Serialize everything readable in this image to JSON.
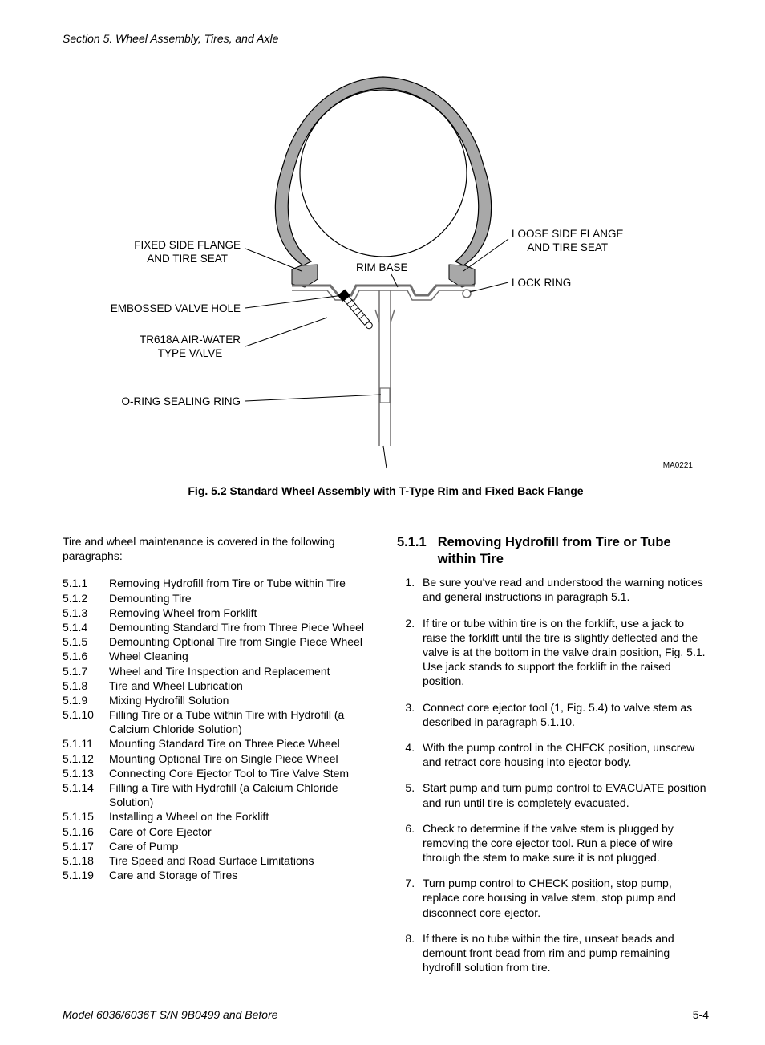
{
  "header": {
    "section_label": "Section 5.   Wheel Assembly, Tires, and Axle"
  },
  "figure": {
    "id_code": "MA0221",
    "caption": "Fig. 5.2 Standard Wheel Assembly with T-Type Rim and Fixed Back Flange",
    "labels": {
      "rim_base": "RIM BASE",
      "fixed_side": "FIXED SIDE FLANGE\nAND TIRE SEAT",
      "embossed_valve": "EMBOSSED VALVE HOLE",
      "tr618a": "TR618A AIR-WATER\nTYPE VALVE",
      "oring": "O-RING SEALING RING",
      "loose_side": "LOOSE SIDE FLANGE\nAND TIRE SEAT",
      "lock_ring": "LOCK RING"
    },
    "colors": {
      "tire_fill": "#a8a8a8",
      "rim_outline": "#706f6f",
      "line": "#000000",
      "bg": "#ffffff"
    }
  },
  "left_column": {
    "intro": "Tire and wheel maintenance is covered in the following paragraphs:",
    "toc": [
      {
        "n": "5.1.1",
        "t": "Removing Hydrofill from Tire or Tube within Tire"
      },
      {
        "n": "5.1.2",
        "t": "Demounting Tire"
      },
      {
        "n": "5.1.3",
        "t": "Removing Wheel from Forklift"
      },
      {
        "n": "5.1.4",
        "t": "Demounting Standard Tire from Three Piece Wheel"
      },
      {
        "n": "5.1.5",
        "t": "Demounting Optional Tire from Single Piece Wheel"
      },
      {
        "n": "5.1.6",
        "t": "Wheel Cleaning"
      },
      {
        "n": "5.1.7",
        "t": "Wheel and Tire Inspection and Replacement"
      },
      {
        "n": "5.1.8",
        "t": "Tire and Wheel Lubrication"
      },
      {
        "n": "5.1.9",
        "t": "Mixing Hydrofill Solution"
      },
      {
        "n": "5.1.10",
        "t": "Filling Tire or a Tube within Tire with Hydrofill (a Calcium Chloride Solution)"
      },
      {
        "n": "5.1.11",
        "t": "Mounting Standard Tire on Three Piece Wheel"
      },
      {
        "n": "5.1.12",
        "t": "Mounting Optional Tire on Single Piece Wheel"
      },
      {
        "n": "5.1.13",
        "t": "Connecting Core Ejector Tool to Tire Valve Stem"
      },
      {
        "n": "5.1.14",
        "t": "Filling a Tire with Hydrofill (a Calcium Chloride Solution)"
      },
      {
        "n": "5.1.15",
        "t": "Installing a Wheel on the Forklift"
      },
      {
        "n": "5.1.16",
        "t": "Care of Core Ejector"
      },
      {
        "n": "5.1.17",
        "t": "Care of Pump"
      },
      {
        "n": "5.1.18",
        "t": "Tire Speed and Road Surface Limitations"
      },
      {
        "n": "5.1.19",
        "t": "Care and Storage of Tires"
      }
    ]
  },
  "right_column": {
    "heading_num": "5.1.1",
    "heading_text": "Removing Hydrofill from Tire or Tube within Tire",
    "steps": [
      "Be sure you've read and understood the warning notices and general instructions in paragraph 5.1.",
      "If tire or tube within tire is on the forklift, use a jack to raise the forklift until the tire is slightly deflected and the valve is at the bottom in the valve drain position, Fig. 5.1.  Use jack stands to support the forklift in the raised position.",
      "Connect core ejector tool (1, Fig. 5.4) to valve stem as described in paragraph 5.1.10.",
      "With the pump control in the CHECK position, unscrew and retract core housing into ejector body.",
      "Start pump and turn pump control to EVACUATE position and run until tire is completely evacuated.",
      "Check to determine if the valve stem is plugged by removing the core ejector tool.  Run a piece of wire through the stem to make sure it is not plugged.",
      "Turn pump control to CHECK position, stop pump, replace core housing in valve stem, stop pump and disconnect core ejector.",
      "If there is no tube within the tire, unseat beads and demount front bead from rim and pump remaining hydrofill solution from tire."
    ]
  },
  "footer": {
    "model": "Model 6036/6036T S/N 9B0499 and Before",
    "page": "5-4"
  }
}
